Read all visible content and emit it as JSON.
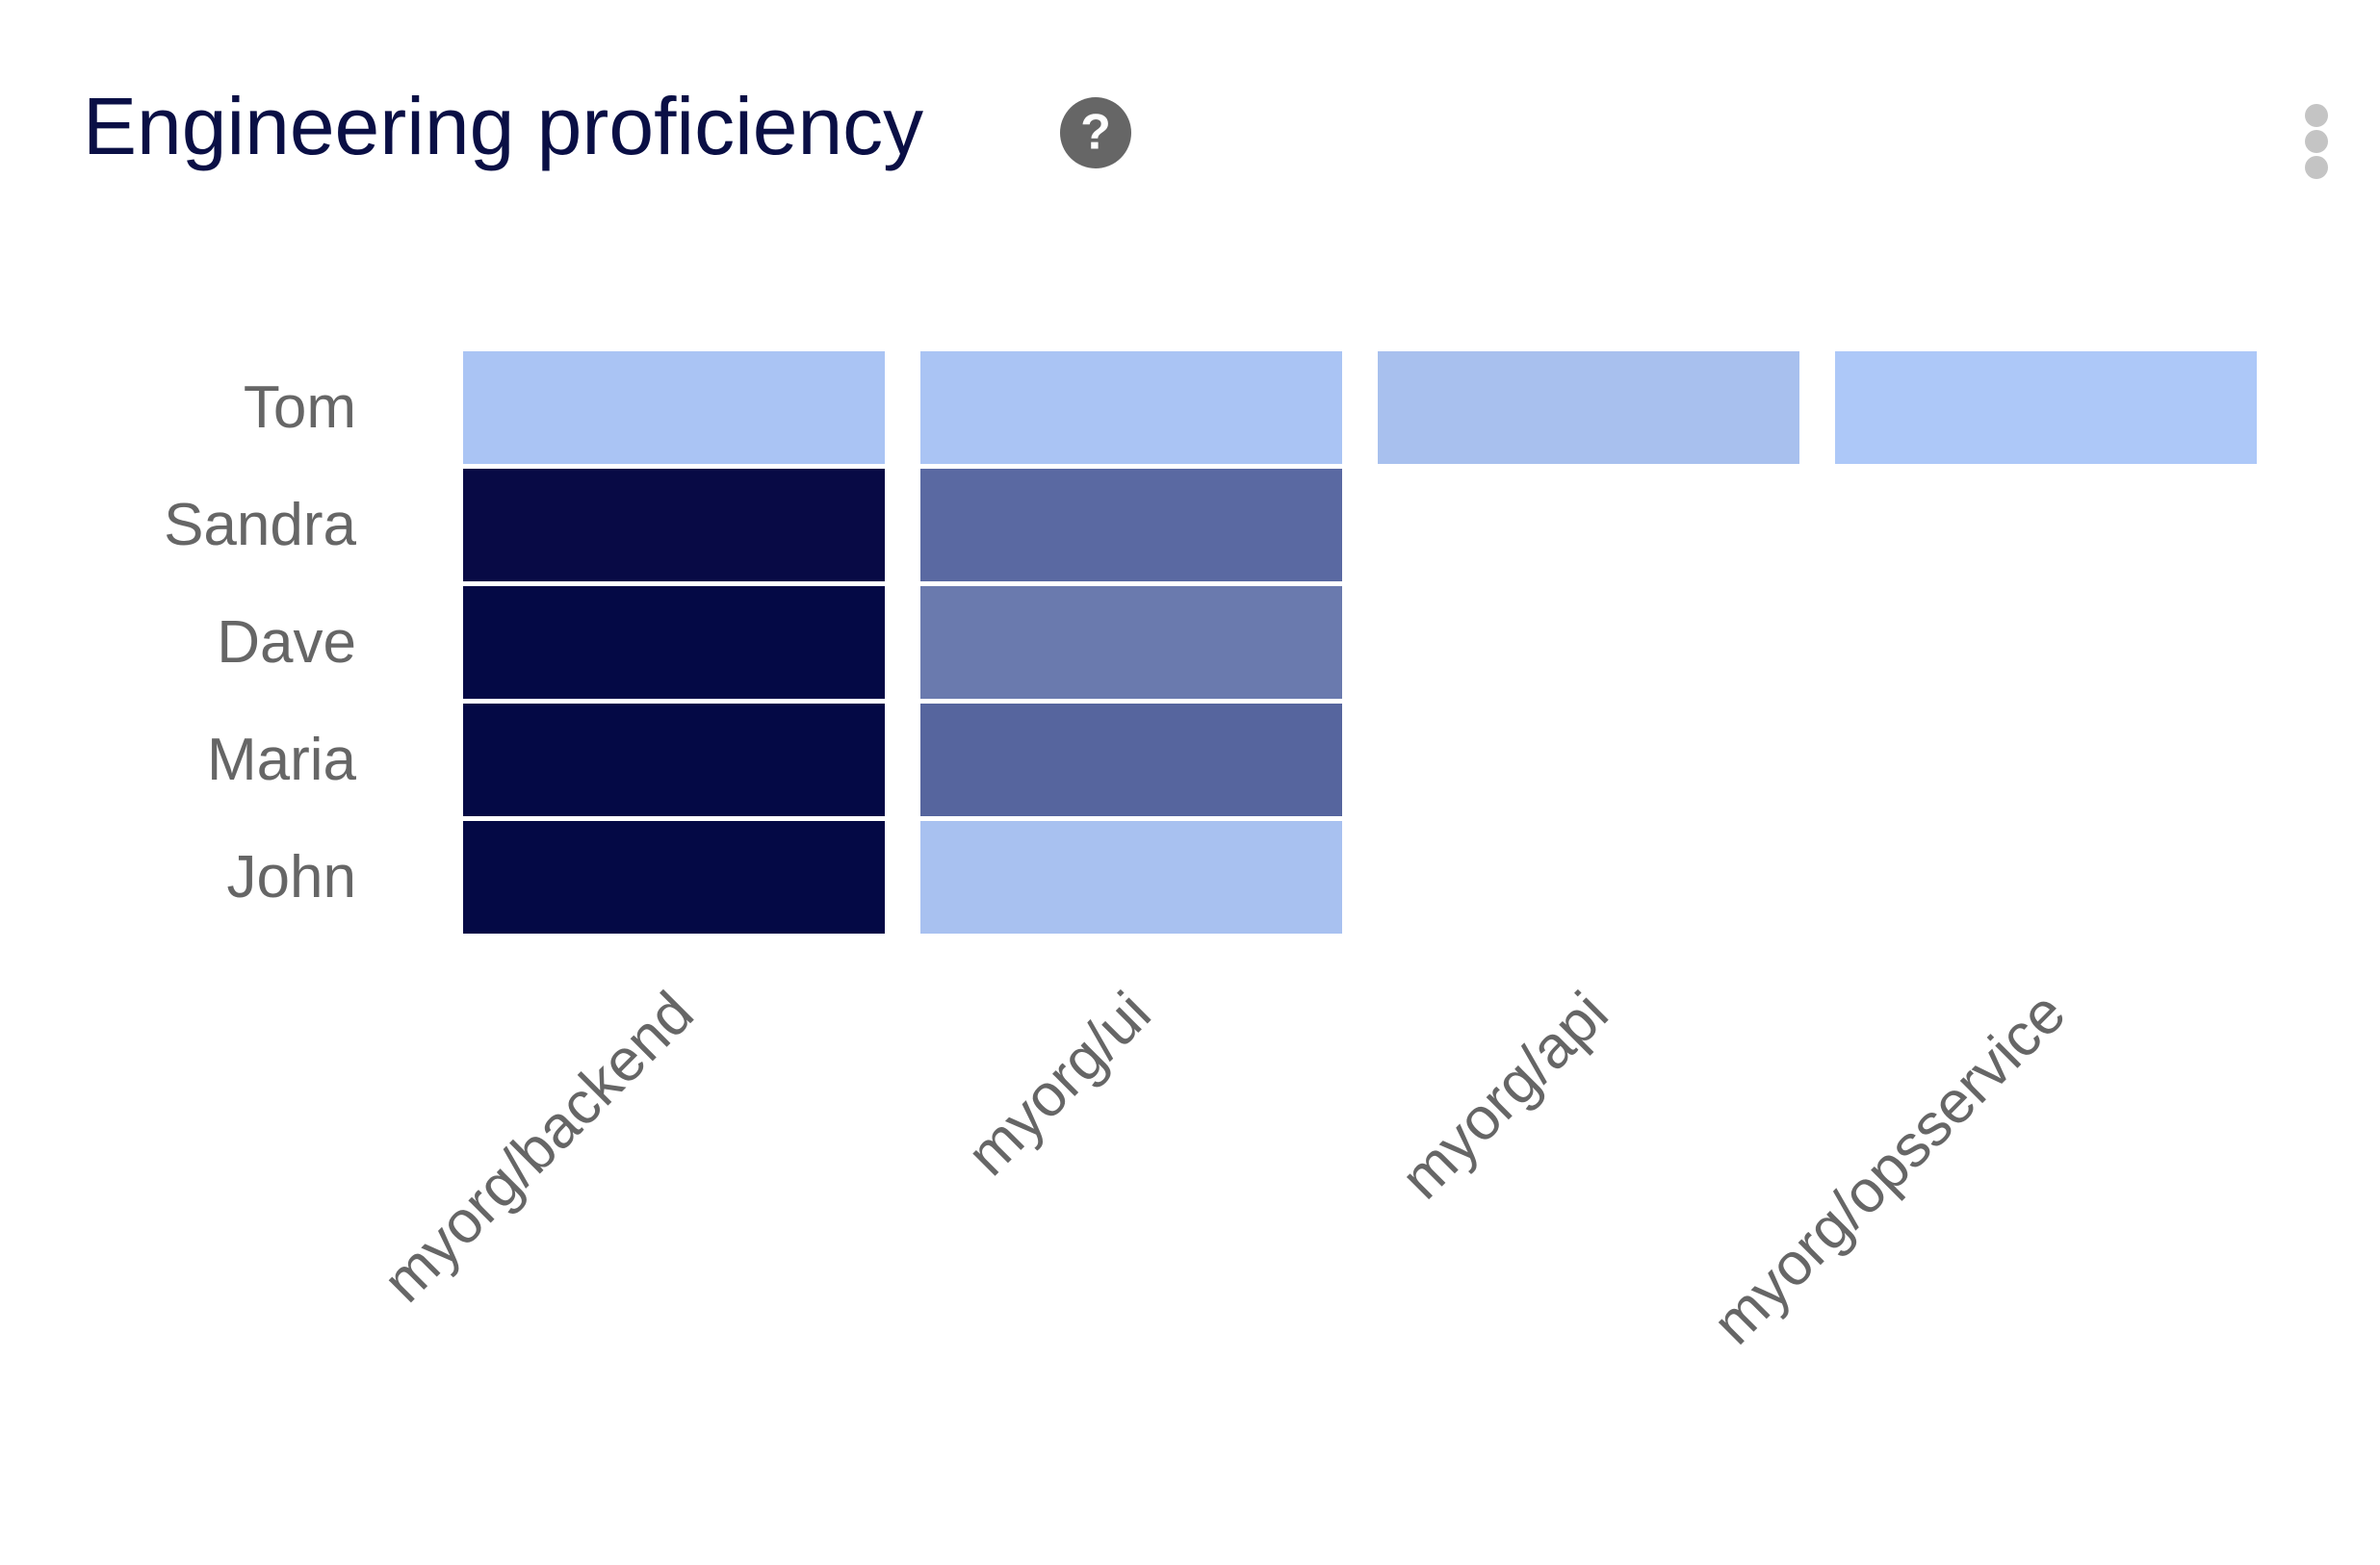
{
  "chart_data": {
    "type": "heatmap",
    "title": "Engineering proficiency",
    "rows": [
      "Tom",
      "Sandra",
      "Dave",
      "Maria",
      "John"
    ],
    "columns": [
      "myorg/backend",
      "myorg/ui",
      "myorg/api",
      "myorg/opsservice"
    ],
    "cell_colors": [
      [
        "#aac4f4",
        "#aac4f4",
        "#a8c0ee",
        "#adc8f8"
      ],
      [
        "#080a45",
        "#5a69a2",
        null,
        null
      ],
      [
        "#040945",
        "#6a7aae",
        null,
        null
      ],
      [
        "#040945",
        "#56659e",
        null,
        null
      ],
      [
        "#040945",
        "#a8c1f0",
        null,
        null
      ]
    ]
  }
}
